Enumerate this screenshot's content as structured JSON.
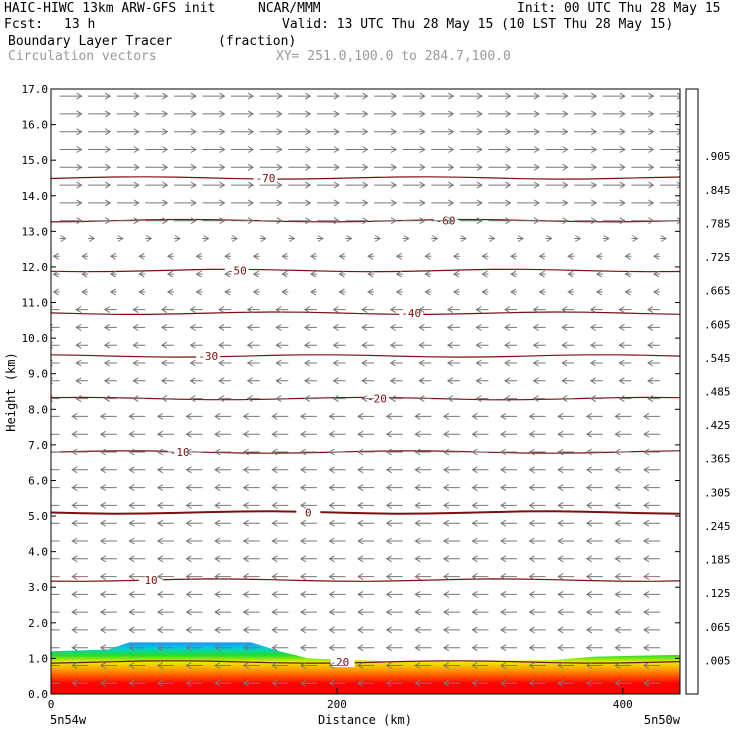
{
  "header": {
    "model": "HAIC-HIWC 13km ARW-GFS init",
    "org": "NCAR/MMM",
    "init": "Init: 00 UTC Thu 28 May 15",
    "fcst_label": "Fcst:",
    "fcst_value": "13 h",
    "valid": "Valid: 13 UTC Thu 28 May 15 (10 LST Thu 28 May 15)",
    "field": "Boundary Layer Tracer",
    "units": "(fraction)",
    "overlay": "Circulation vectors",
    "xy": "XY= 251.0,100.0 to 284.7,100.0"
  },
  "colors": {
    "contour": "#7a1010",
    "vector": "#777777",
    "tracer_high": "#ff0000"
  },
  "chart_data": {
    "type": "cross-section",
    "ylabel": "Height (km)",
    "xlabel": "Distance (km)",
    "ylim": [
      0,
      17
    ],
    "xlim": [
      0,
      440
    ],
    "y_ticks": [
      "0.0",
      "1.0",
      "2.0",
      "3.0",
      "4.0",
      "5.0",
      "6.0",
      "7.0",
      "8.0",
      "9.0",
      "10.0",
      "11.0",
      "12.0",
      "13.0",
      "14.0",
      "15.0",
      "16.0",
      "17.0"
    ],
    "x_ticks": [
      {
        "value": 0,
        "label": "0"
      },
      {
        "value": 200,
        "label": "200"
      },
      {
        "value": 400,
        "label": "400"
      }
    ],
    "x_endpoints": {
      "left": "5n54w",
      "right": "5n50w"
    },
    "colorbar_labels": [
      ".005",
      ".065",
      ".125",
      ".185",
      ".245",
      ".305",
      ".365",
      ".425",
      ".485",
      ".545",
      ".605",
      ".665",
      ".725",
      ".785",
      ".845",
      ".905"
    ],
    "colorbar_colors": [
      "#ffffff",
      "#6e6ed8",
      "#1e90ff",
      "#00b4ff",
      "#00d2d2",
      "#00dcaa",
      "#00d878",
      "#28dc28",
      "#78e61e",
      "#b4f00a",
      "#e6f000",
      "#ffe600",
      "#ffc800",
      "#ffa000",
      "#ff7800",
      "#ff5000",
      "#ff2800",
      "#ff0000"
    ],
    "temperature_contours": [
      {
        "value": 0,
        "label": "0",
        "height_km": 5.1
      },
      {
        "value": 10,
        "label": "10",
        "height_km": 3.2
      },
      {
        "value": 20,
        "label": "20",
        "height_km": 0.9
      },
      {
        "value": -10,
        "label": "-10",
        "height_km": 6.8
      },
      {
        "value": -20,
        "label": "-20",
        "height_km": 8.3
      },
      {
        "value": -30,
        "label": "-30",
        "height_km": 9.5
      },
      {
        "value": -40,
        "label": "-40",
        "height_km": 10.7
      },
      {
        "value": -50,
        "label": "-50",
        "height_km": 11.9
      },
      {
        "value": -60,
        "label": "-60",
        "height_km": 13.3
      },
      {
        "value": -70,
        "label": "-70",
        "height_km": 14.5
      }
    ],
    "boundary_layer_top_km": [
      {
        "x": 0,
        "h": 1.2
      },
      {
        "x": 40,
        "h": 1.25
      },
      {
        "x": 55,
        "h": 1.45
      },
      {
        "x": 140,
        "h": 1.45
      },
      {
        "x": 160,
        "h": 1.2
      },
      {
        "x": 180,
        "h": 1.0
      },
      {
        "x": 250,
        "h": 0.9
      },
      {
        "x": 350,
        "h": 0.95
      },
      {
        "x": 380,
        "h": 1.05
      },
      {
        "x": 440,
        "h": 1.1
      }
    ]
  }
}
